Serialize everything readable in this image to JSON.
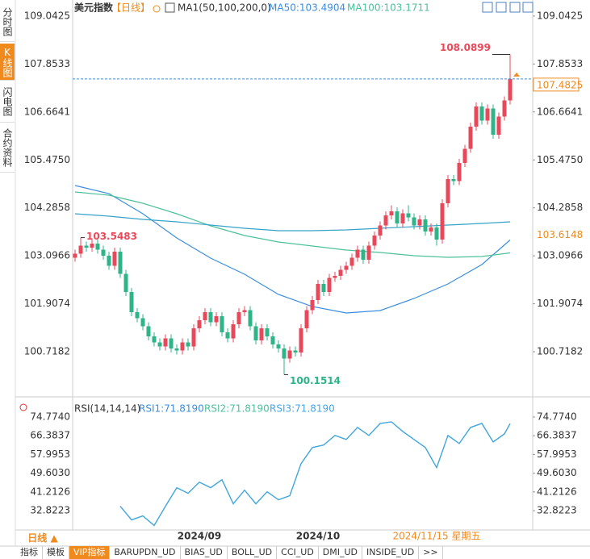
{
  "ui": {
    "side_tabs": [
      "分时图",
      "K线图",
      "闪电图",
      "合约资料"
    ],
    "side_tab_active": 1,
    "bottom_tabs": [
      "指标",
      "模板",
      "VIP指标",
      "BARUPDN_UD",
      "BIAS_UD",
      "BOLL_UD",
      "CCI_UD",
      "DMI_UD",
      "INSIDE_UD",
      ">>"
    ],
    "bottom_tab_active": 2,
    "period_button": "日线 ▲"
  },
  "chart_data": [
    {
      "type": "candlestick",
      "title": "美元指数",
      "period": "【日线】",
      "indicator": "MA1(50,100,200,0)",
      "categories": [
        null,
        null,
        null,
        null,
        null,
        null,
        null,
        null,
        null,
        null,
        null,
        null,
        null,
        null,
        null,
        null,
        null,
        null,
        null,
        null,
        null,
        null,
        "2024/09",
        null,
        null,
        null,
        null,
        null,
        null,
        null,
        null,
        null,
        null,
        null,
        null,
        null,
        null,
        null,
        null,
        null,
        null,
        null,
        null,
        "2024/10",
        null,
        null,
        null,
        null,
        null,
        null,
        null,
        null,
        null,
        null,
        null,
        null,
        null,
        null,
        null,
        null,
        null,
        null,
        null,
        null,
        null,
        null,
        null,
        null,
        null,
        null,
        null,
        null,
        null,
        null,
        null,
        null,
        null,
        null
      ],
      "open": [
        103.05,
        103.15,
        103.35,
        103.3,
        103.4,
        103.25,
        103.1,
        102.85,
        103.2,
        102.65,
        102.2,
        101.7,
        101.55,
        101.35,
        101.1,
        100.95,
        100.85,
        101.05,
        100.8,
        100.75,
        100.95,
        100.85,
        101.3,
        101.5,
        101.7,
        101.45,
        101.6,
        101.2,
        101.05,
        101.4,
        101.7,
        101.75,
        101.35,
        101.0,
        101.3,
        101.1,
        100.9,
        100.8,
        100.55,
        100.75,
        100.7,
        101.3,
        101.75,
        102.0,
        102.4,
        102.2,
        102.55,
        102.6,
        102.75,
        102.85,
        103.05,
        103.25,
        103.0,
        103.35,
        103.6,
        103.85,
        104.1,
        104.2,
        103.9,
        104.15,
        104.05,
        103.85,
        104.0,
        103.7,
        103.8,
        103.5,
        104.4,
        105.0,
        104.95,
        105.4,
        105.75,
        106.3,
        106.8,
        106.45,
        106.75,
        106.1,
        106.55,
        106.95
      ],
      "high": [
        103.25,
        103.5483,
        103.45,
        103.5,
        103.5,
        103.35,
        103.2,
        103.3,
        103.3,
        102.75,
        102.3,
        101.8,
        101.65,
        101.45,
        101.2,
        101.05,
        101.15,
        101.15,
        100.9,
        101.05,
        101.05,
        101.4,
        101.6,
        101.8,
        101.8,
        101.7,
        101.7,
        101.3,
        101.5,
        101.8,
        101.85,
        101.85,
        101.45,
        101.4,
        101.4,
        101.2,
        101.0,
        100.9,
        100.85,
        100.85,
        101.4,
        101.85,
        102.1,
        102.5,
        102.5,
        102.65,
        102.7,
        102.85,
        102.95,
        103.15,
        103.35,
        103.35,
        103.45,
        103.7,
        103.95,
        104.2,
        104.35,
        104.3,
        104.25,
        104.35,
        104.15,
        104.1,
        104.1,
        103.9,
        103.9,
        104.5,
        105.1,
        105.1,
        105.5,
        105.85,
        106.4,
        106.9,
        106.9,
        106.85,
        106.85,
        106.65,
        107.05,
        108.0899
      ],
      "low": [
        102.95,
        103.05,
        103.2,
        103.2,
        103.15,
        103.0,
        102.75,
        102.75,
        102.55,
        102.1,
        101.6,
        101.45,
        101.25,
        101.0,
        100.85,
        100.75,
        100.75,
        100.7,
        100.65,
        100.65,
        100.75,
        100.75,
        101.2,
        101.4,
        101.35,
        101.35,
        101.1,
        100.95,
        100.95,
        101.3,
        101.6,
        101.25,
        100.9,
        100.9,
        101.0,
        100.8,
        100.7,
        100.1514,
        100.45,
        100.6,
        100.6,
        101.2,
        101.65,
        101.9,
        102.1,
        102.1,
        102.45,
        102.5,
        102.65,
        102.75,
        102.95,
        102.9,
        102.9,
        103.25,
        103.5,
        103.75,
        104.0,
        103.8,
        103.8,
        103.95,
        103.75,
        103.75,
        103.6,
        103.6,
        103.35,
        103.4,
        104.3,
        104.85,
        104.85,
        105.3,
        105.65,
        106.2,
        106.35,
        106.35,
        106.0,
        106.0,
        106.45,
        106.85
      ],
      "close": [
        103.15,
        103.35,
        103.3,
        103.4,
        103.25,
        103.1,
        102.85,
        103.2,
        102.65,
        102.2,
        101.7,
        101.55,
        101.35,
        101.1,
        100.95,
        100.85,
        101.05,
        100.8,
        100.75,
        100.95,
        100.85,
        101.3,
        101.5,
        101.7,
        101.45,
        101.6,
        101.2,
        101.05,
        101.4,
        101.7,
        101.75,
        101.35,
        101.0,
        101.3,
        101.1,
        100.9,
        100.8,
        100.55,
        100.75,
        100.7,
        101.3,
        101.75,
        102.0,
        102.4,
        102.2,
        102.55,
        102.6,
        102.75,
        102.85,
        103.05,
        103.25,
        103.0,
        103.35,
        103.6,
        103.85,
        104.1,
        104.2,
        103.9,
        104.15,
        104.05,
        103.85,
        104.0,
        103.7,
        103.8,
        103.5,
        104.4,
        105.0,
        104.95,
        105.4,
        105.75,
        106.3,
        106.8,
        106.45,
        106.75,
        106.1,
        106.55,
        106.95,
        107.4825
      ],
      "up_color": "#e8495a",
      "down_color": "#2fb487",
      "series": [
        {
          "name": "MA50:103.4904",
          "color": "#3a8ee0",
          "x": [
            0,
            6,
            12,
            18,
            24,
            30,
            36,
            42,
            48,
            54,
            60,
            66,
            72,
            77
          ],
          "values": [
            104.84,
            104.64,
            104.14,
            103.54,
            103.04,
            102.64,
            102.14,
            101.84,
            101.68,
            101.74,
            102.04,
            102.4,
            102.88,
            103.49
          ]
        },
        {
          "name": "MA100:103.1711",
          "color": "#4cc19a",
          "x": [
            0,
            6,
            12,
            18,
            24,
            30,
            36,
            42,
            48,
            54,
            60,
            66,
            72,
            77
          ],
          "values": [
            104.68,
            104.6,
            104.4,
            104.14,
            103.84,
            103.6,
            103.44,
            103.34,
            103.24,
            103.18,
            103.1,
            103.06,
            103.08,
            103.17
          ]
        },
        {
          "color": "#36a3c9",
          "x": [
            0,
            6,
            12,
            18,
            24,
            30,
            36,
            42,
            48,
            54,
            60,
            66,
            72,
            77
          ],
          "values": [
            104.14,
            104.08,
            104.0,
            103.94,
            103.86,
            103.78,
            103.72,
            103.72,
            103.74,
            103.78,
            103.82,
            103.86,
            103.9,
            103.94
          ]
        }
      ],
      "ylim": [
        99.64,
        109.34
      ],
      "yticks": [
        109.0425,
        107.8533,
        106.6641,
        {
          "value": 105.475,
          "label": "105.4750"
        },
        104.2858,
        103.0966,
        101.9074,
        100.7182
      ],
      "marker_value": 103.6148,
      "cursor_label": "2024/11/15 星期五"
    },
    {
      "type": "line",
      "title": "RSI(14,14,14)",
      "series": [
        {
          "name": "RSI1:71.8190",
          "color": "#3a8ee0",
          "x": [
            8,
            10,
            12,
            14,
            16,
            18,
            20,
            22,
            24,
            26,
            28,
            30,
            32,
            34,
            36,
            38,
            40,
            42,
            44,
            46,
            48,
            50,
            52,
            54,
            56,
            58,
            60,
            62,
            64,
            66,
            68,
            70,
            72,
            74,
            76,
            77
          ],
          "values": [
            34.8,
            28.7,
            30.5,
            26.2,
            34.8,
            43.1,
            40.6,
            45.6,
            43.1,
            46.7,
            35.9,
            42.0,
            35.9,
            41.3,
            37.7,
            39.5,
            53.9,
            61.1,
            62.2,
            66.5,
            64.7,
            70.1,
            66.5,
            71.9,
            72.6,
            68.3,
            64.7,
            61.1,
            52.1,
            66.5,
            62.9,
            70.1,
            71.9,
            63.6,
            67.2,
            71.819
          ]
        },
        {
          "name": "RSI2:71.8190",
          "color": "#4cc19a",
          "x": [
            8,
            10,
            12,
            14,
            16,
            18,
            20,
            22,
            24,
            26,
            28,
            30,
            32,
            34,
            36,
            38,
            40,
            42,
            44,
            46,
            48,
            50,
            52,
            54,
            56,
            58,
            60,
            62,
            64,
            66,
            68,
            70,
            72,
            74,
            76,
            77
          ],
          "values": [
            34.8,
            28.7,
            30.5,
            26.2,
            34.8,
            43.1,
            40.6,
            45.6,
            43.1,
            46.7,
            35.9,
            42.0,
            35.9,
            41.3,
            37.7,
            39.5,
            53.9,
            61.1,
            62.2,
            66.5,
            64.7,
            70.1,
            66.5,
            71.9,
            72.6,
            68.3,
            64.7,
            61.1,
            52.1,
            66.5,
            62.9,
            70.1,
            71.9,
            63.6,
            67.2,
            71.819
          ]
        },
        {
          "name": "RSI3:71.8190",
          "color": "#45a6e6",
          "x": [
            8,
            10,
            12,
            14,
            16,
            18,
            20,
            22,
            24,
            26,
            28,
            30,
            32,
            34,
            36,
            38,
            40,
            42,
            44,
            46,
            48,
            50,
            52,
            54,
            56,
            58,
            60,
            62,
            64,
            66,
            68,
            70,
            72,
            74,
            76,
            77
          ],
          "values": [
            34.8,
            28.7,
            30.5,
            26.2,
            34.8,
            43.1,
            40.6,
            45.6,
            43.1,
            46.7,
            35.9,
            42.0,
            35.9,
            41.3,
            37.7,
            39.5,
            53.9,
            61.1,
            62.2,
            66.5,
            64.7,
            70.1,
            66.5,
            71.9,
            72.6,
            68.3,
            64.7,
            61.1,
            52.1,
            66.5,
            62.9,
            70.1,
            71.9,
            63.6,
            67.2,
            71.819
          ]
        }
      ],
      "ylim": [
        24.18,
        81.98
      ],
      "yticks": [
        {
          "value": 74.774,
          "label": "74.7740"
        },
        66.3837,
        57.9953,
        {
          "value": 49.603,
          "label": "49.6030"
        },
        41.2126,
        32.8223
      ]
    }
  ]
}
